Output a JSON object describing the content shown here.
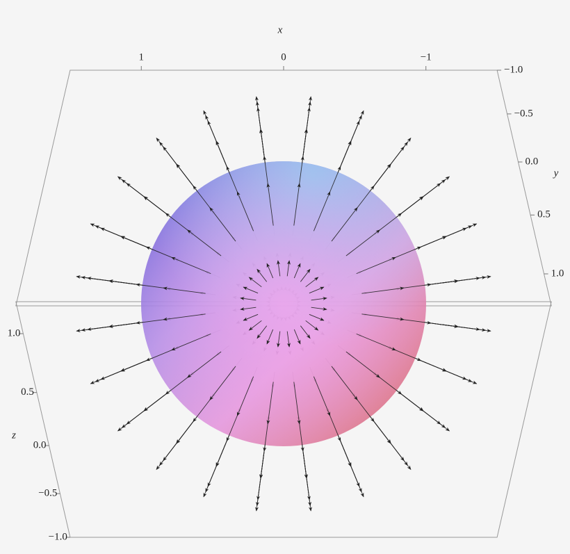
{
  "chart_data": {
    "type": "vector-field-3d",
    "xlabel": "x",
    "ylabel": "y",
    "zlabel": "z",
    "xlim": [
      1.5,
      -1.5
    ],
    "xticks": [
      1,
      0,
      {
        "value": -1,
        "label": "−1"
      }
    ],
    "ylim": [
      -1,
      1.25
    ],
    "yticks": [
      {
        "value": -1,
        "label": "−1.0"
      },
      {
        "value": -0.5,
        "label": "−0.5"
      },
      {
        "value": 0,
        "label": "0.0"
      },
      0.5,
      {
        "value": 1,
        "label": "1.0"
      }
    ],
    "zlim": [
      -1,
      1.25
    ],
    "zticks": [
      {
        "value": 1,
        "label": "1.0"
      },
      0.5,
      {
        "value": 0,
        "label": "0.0"
      },
      {
        "value": -0.5,
        "label": "−0.5"
      },
      {
        "value": -1,
        "label": "−1.0"
      }
    ]
  }
}
